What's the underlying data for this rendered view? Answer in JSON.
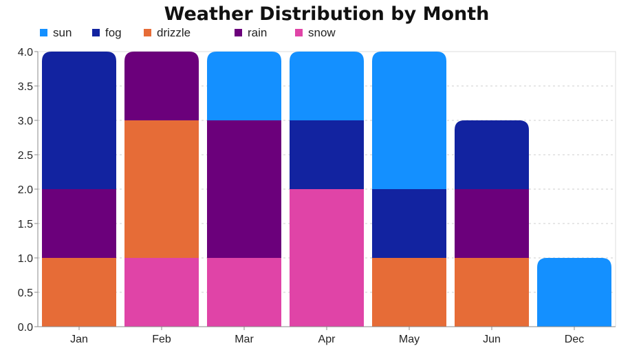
{
  "chart_data": {
    "type": "bar",
    "stacked": true,
    "title": "Weather Distribution by Month",
    "xlabel": "",
    "ylabel": "",
    "categories": [
      "Jan",
      "Feb",
      "Mar",
      "Apr",
      "May",
      "Jun",
      "Dec"
    ],
    "ylim": [
      0,
      4
    ],
    "yticks": [
      "0.0",
      "0.5",
      "1.0",
      "1.5",
      "2.0",
      "2.5",
      "3.0",
      "3.5",
      "4.0"
    ],
    "grid": "horizontal dashed",
    "legend_position": "top-left",
    "legend_order": [
      "sun",
      "fog",
      "drizzle",
      "rain",
      "snow"
    ],
    "stack_order": [
      "snow",
      "drizzle",
      "rain",
      "fog",
      "sun"
    ],
    "series": [
      {
        "name": "sun",
        "color": "#1490ff",
        "values": [
          0,
          0,
          1,
          1,
          2,
          0,
          1
        ]
      },
      {
        "name": "fog",
        "color": "#1223a0",
        "values": [
          2,
          0,
          0,
          1,
          1,
          1,
          0
        ]
      },
      {
        "name": "drizzle",
        "color": "#e66c37",
        "values": [
          1,
          2,
          0,
          0,
          1,
          1,
          0
        ]
      },
      {
        "name": "rain",
        "color": "#6b007b",
        "values": [
          1,
          1,
          2,
          0,
          0,
          1,
          0
        ]
      },
      {
        "name": "snow",
        "color": "#e044a7",
        "values": [
          0,
          1,
          1,
          2,
          0,
          0,
          0
        ]
      }
    ]
  }
}
